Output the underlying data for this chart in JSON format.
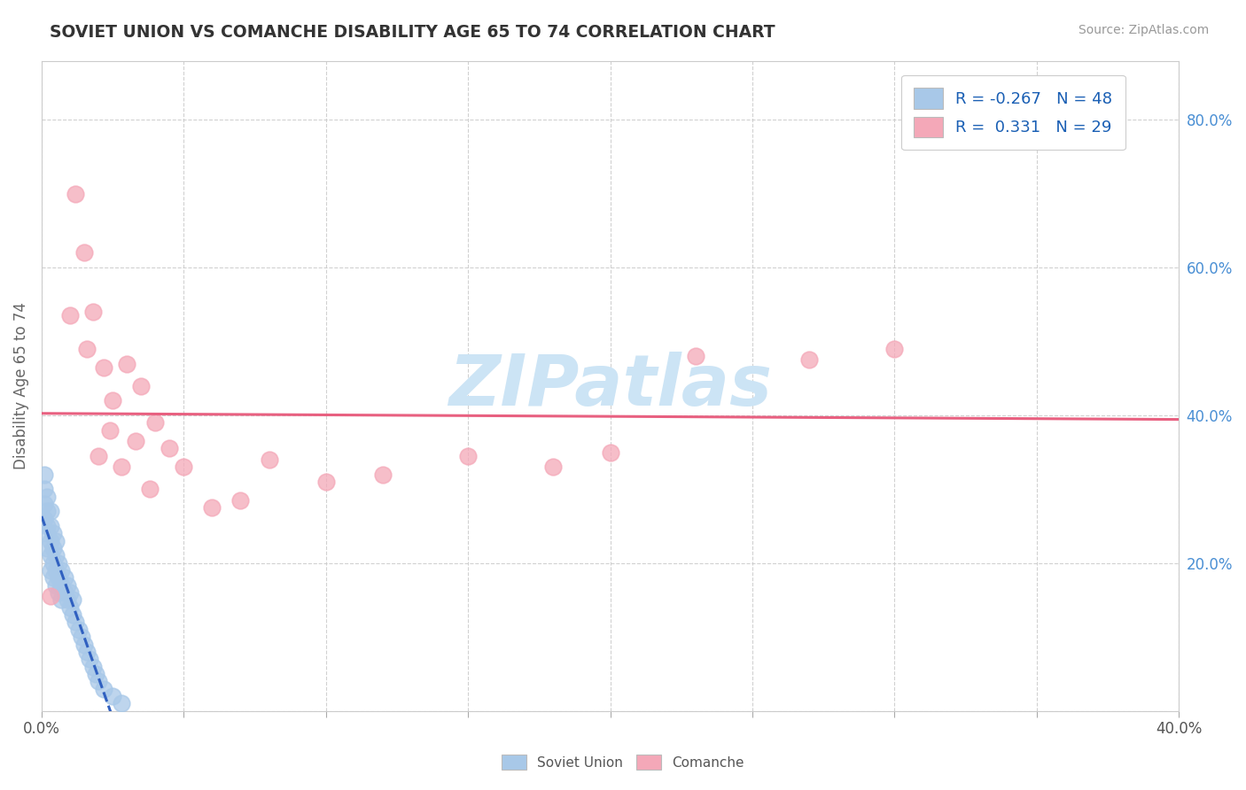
{
  "title": "SOVIET UNION VS COMANCHE DISABILITY AGE 65 TO 74 CORRELATION CHART",
  "source": "Source: ZipAtlas.com",
  "ylabel_label": "Disability Age 65 to 74",
  "xlim": [
    0.0,
    0.4
  ],
  "ylim": [
    0.0,
    0.88
  ],
  "xticks": [
    0.0,
    0.05,
    0.1,
    0.15,
    0.2,
    0.25,
    0.3,
    0.35,
    0.4
  ],
  "yticks": [
    0.0,
    0.2,
    0.4,
    0.6,
    0.8
  ],
  "ytick_labels": [
    "",
    "20.0%",
    "40.0%",
    "60.0%",
    "80.0%"
  ],
  "R_soviet": -0.267,
  "N_soviet": 48,
  "R_comanche": 0.331,
  "N_comanche": 29,
  "soviet_color": "#a8c8e8",
  "comanche_color": "#f4a8b8",
  "soviet_line_color": "#3060c0",
  "soviet_line_style": "--",
  "comanche_line_color": "#e86080",
  "comanche_line_style": "-",
  "soviet_x": [
    0.001,
    0.001,
    0.001,
    0.001,
    0.002,
    0.002,
    0.002,
    0.002,
    0.002,
    0.003,
    0.003,
    0.003,
    0.003,
    0.003,
    0.004,
    0.004,
    0.004,
    0.004,
    0.005,
    0.005,
    0.005,
    0.005,
    0.006,
    0.006,
    0.006,
    0.007,
    0.007,
    0.007,
    0.008,
    0.008,
    0.009,
    0.009,
    0.01,
    0.01,
    0.011,
    0.011,
    0.012,
    0.013,
    0.014,
    0.015,
    0.016,
    0.017,
    0.018,
    0.019,
    0.02,
    0.022,
    0.025,
    0.028
  ],
  "soviet_y": [
    0.3,
    0.28,
    0.32,
    0.26,
    0.25,
    0.27,
    0.22,
    0.24,
    0.29,
    0.21,
    0.23,
    0.25,
    0.19,
    0.27,
    0.2,
    0.22,
    0.18,
    0.24,
    0.19,
    0.17,
    0.21,
    0.23,
    0.18,
    0.2,
    0.16,
    0.17,
    0.19,
    0.15,
    0.16,
    0.18,
    0.15,
    0.17,
    0.14,
    0.16,
    0.13,
    0.15,
    0.12,
    0.11,
    0.1,
    0.09,
    0.08,
    0.07,
    0.06,
    0.05,
    0.04,
    0.03,
    0.02,
    0.01
  ],
  "comanche_x": [
    0.003,
    0.01,
    0.012,
    0.015,
    0.016,
    0.018,
    0.02,
    0.022,
    0.024,
    0.025,
    0.028,
    0.03,
    0.033,
    0.035,
    0.038,
    0.04,
    0.045,
    0.05,
    0.06,
    0.07,
    0.08,
    0.1,
    0.12,
    0.15,
    0.18,
    0.2,
    0.23,
    0.27,
    0.3
  ],
  "comanche_y": [
    0.155,
    0.535,
    0.7,
    0.62,
    0.49,
    0.54,
    0.345,
    0.465,
    0.38,
    0.42,
    0.33,
    0.47,
    0.365,
    0.44,
    0.3,
    0.39,
    0.355,
    0.33,
    0.275,
    0.285,
    0.34,
    0.31,
    0.32,
    0.345,
    0.33,
    0.35,
    0.48,
    0.475,
    0.49
  ],
  "watermark_text": "ZIPatlas",
  "watermark_color": "#cce4f5",
  "background_color": "#ffffff",
  "legend_text1": "R = -0.267   N = 48",
  "legend_text2": "R =  0.331   N = 29"
}
